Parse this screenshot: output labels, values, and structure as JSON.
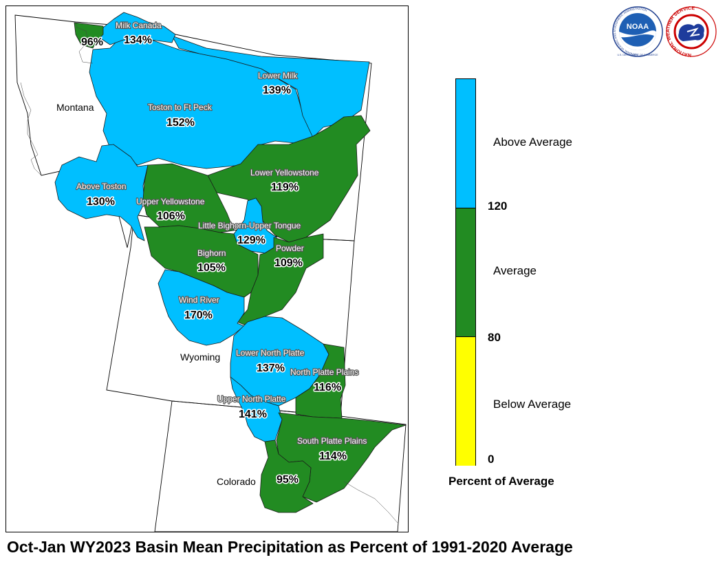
{
  "caption": "Oct-Jan WY2023 Basin Mean Precipitation as Percent of 1991-2020 Average",
  "colors": {
    "above": "#00BFFF",
    "average": "#228B22",
    "below": "#FFFF00",
    "state_line": "#000000",
    "basin_line": "#1a1a1a"
  },
  "states": {
    "montana": "Montana",
    "wyoming": "Wyoming",
    "colorado": "Colorado"
  },
  "basins": [
    {
      "name": "Milk Canada",
      "value": "134%",
      "category": "above"
    },
    {
      "name": "",
      "value": "96%",
      "category": "average"
    },
    {
      "name": "Lower Milk",
      "value": "139%",
      "category": "above"
    },
    {
      "name": "Toston to Ft Peck",
      "value": "152%",
      "category": "above"
    },
    {
      "name": "Above Toston",
      "value": "130%",
      "category": "above"
    },
    {
      "name": "Lower Yellowstone",
      "value": "119%",
      "category": "average"
    },
    {
      "name": "Upper Yellowstone",
      "value": "106%",
      "category": "average"
    },
    {
      "name": "Little Bighorn-Upper Tongue",
      "value": "129%",
      "category": "above"
    },
    {
      "name": "Bighorn",
      "value": "105%",
      "category": "average"
    },
    {
      "name": "Powder",
      "value": "109%",
      "category": "average"
    },
    {
      "name": "Wind River",
      "value": "170%",
      "category": "above"
    },
    {
      "name": "Lower North Platte",
      "value": "137%",
      "category": "above"
    },
    {
      "name": "North Platte Plains",
      "value": "116%",
      "category": "average"
    },
    {
      "name": "Upper North Platte",
      "value": "141%",
      "category": "above"
    },
    {
      "name": "South Platte Plains",
      "value": "114%",
      "category": "average"
    },
    {
      "name": "",
      "value": "95%",
      "category": "average"
    }
  ],
  "legend": {
    "title": "Percent of Average",
    "categories": [
      {
        "label": "Above Average",
        "range": [
          120,
          null
        ],
        "color": "#00BFFF"
      },
      {
        "label": "Average",
        "range": [
          80,
          120
        ],
        "color": "#228B22"
      },
      {
        "label": "Below Average",
        "range": [
          0,
          80
        ],
        "color": "#FFFF00"
      }
    ],
    "ticks": [
      "120",
      "80",
      "0"
    ]
  },
  "logos": {
    "noaa": {
      "label": "NOAA",
      "ring_text": "NATIONAL OCEANIC AND ATMOSPHERIC ADMINISTRATION",
      "bottom_text": "U.S. DEPARTMENT OF COMMERCE"
    },
    "nws": {
      "ring_text": "NATIONAL WEATHER SERVICE"
    }
  }
}
